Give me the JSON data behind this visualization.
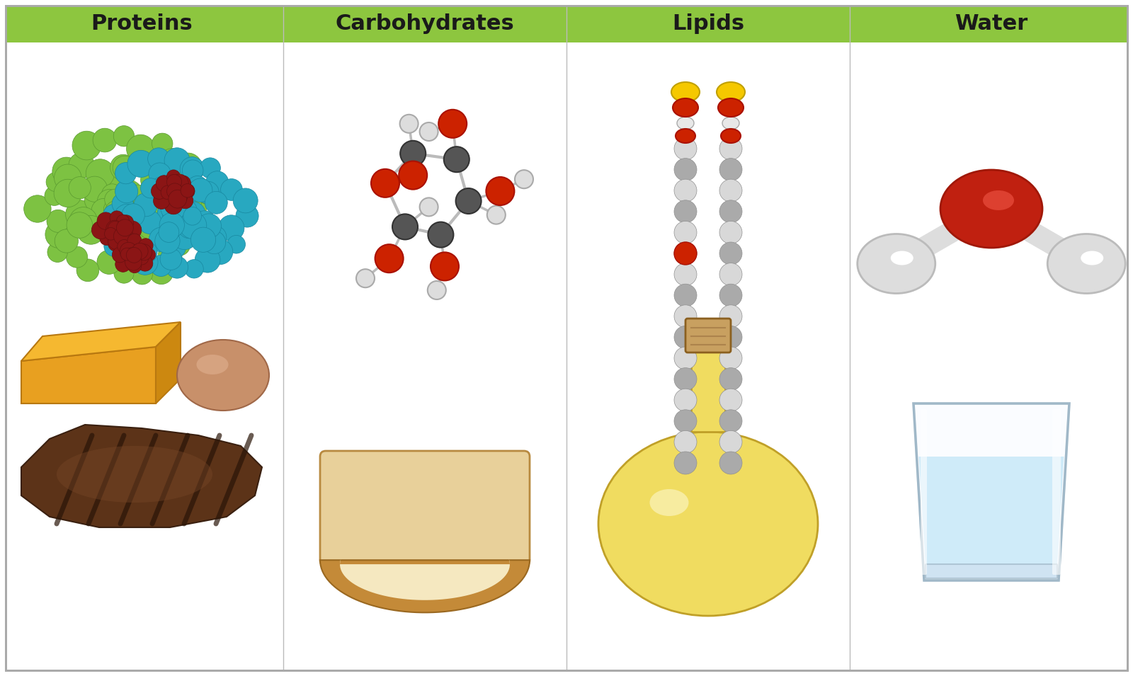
{
  "columns": [
    "Proteins",
    "Carbohydrates",
    "Lipids",
    "Water"
  ],
  "header_bg_color": "#8DC63F",
  "header_text_color": "#1A1A1A",
  "border_color": "#8DC63F",
  "bg_color": "#FFFFFF",
  "header_font_size": 22,
  "fig_width": 16.0,
  "fig_height": 9.55,
  "col_divider_color": "#AAAAAA",
  "outer_border_color": "#888888"
}
